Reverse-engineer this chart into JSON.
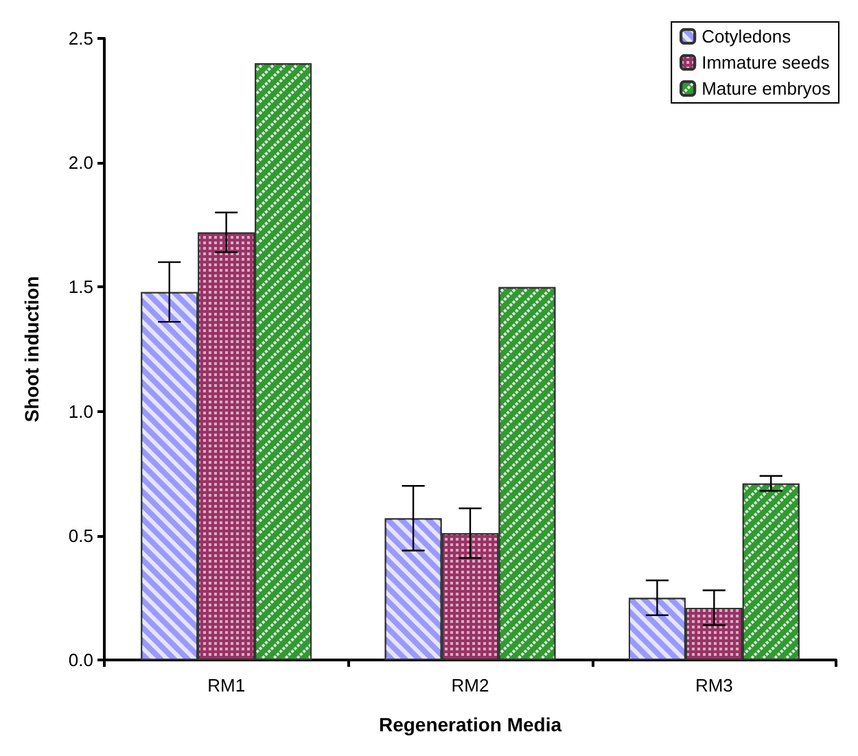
{
  "chart_data": {
    "type": "bar",
    "xlabel": "Regeneration Media",
    "ylabel": "Shoot induction",
    "categories": [
      "RM1",
      "RM2",
      "RM3"
    ],
    "series": [
      {
        "name": "Cotyledons",
        "color": "#9999ff",
        "values": [
          1.48,
          0.57,
          0.25
        ],
        "errors": [
          0.12,
          0.13,
          0.07
        ]
      },
      {
        "name": "Immature seeds",
        "color": "#993366",
        "values": [
          1.72,
          0.51,
          0.21
        ],
        "errors": [
          0.08,
          0.1,
          0.07
        ]
      },
      {
        "name": "Mature embryos",
        "color": "#339933",
        "values": [
          2.4,
          1.5,
          0.71
        ],
        "errors": [
          null,
          null,
          0.03
        ]
      }
    ],
    "ylim": [
      0,
      2.5
    ],
    "yticks": [
      {
        "value": 0,
        "label": "0.0"
      },
      {
        "value": 0.5,
        "label": "0.5"
      },
      {
        "value": 1,
        "label": "1.0"
      },
      {
        "value": 1.5,
        "label": "1.5"
      },
      {
        "value": 2,
        "label": "2.0"
      },
      {
        "value": 2.5,
        "label": "2.5"
      }
    ],
    "grid": false,
    "legend": "top right"
  }
}
